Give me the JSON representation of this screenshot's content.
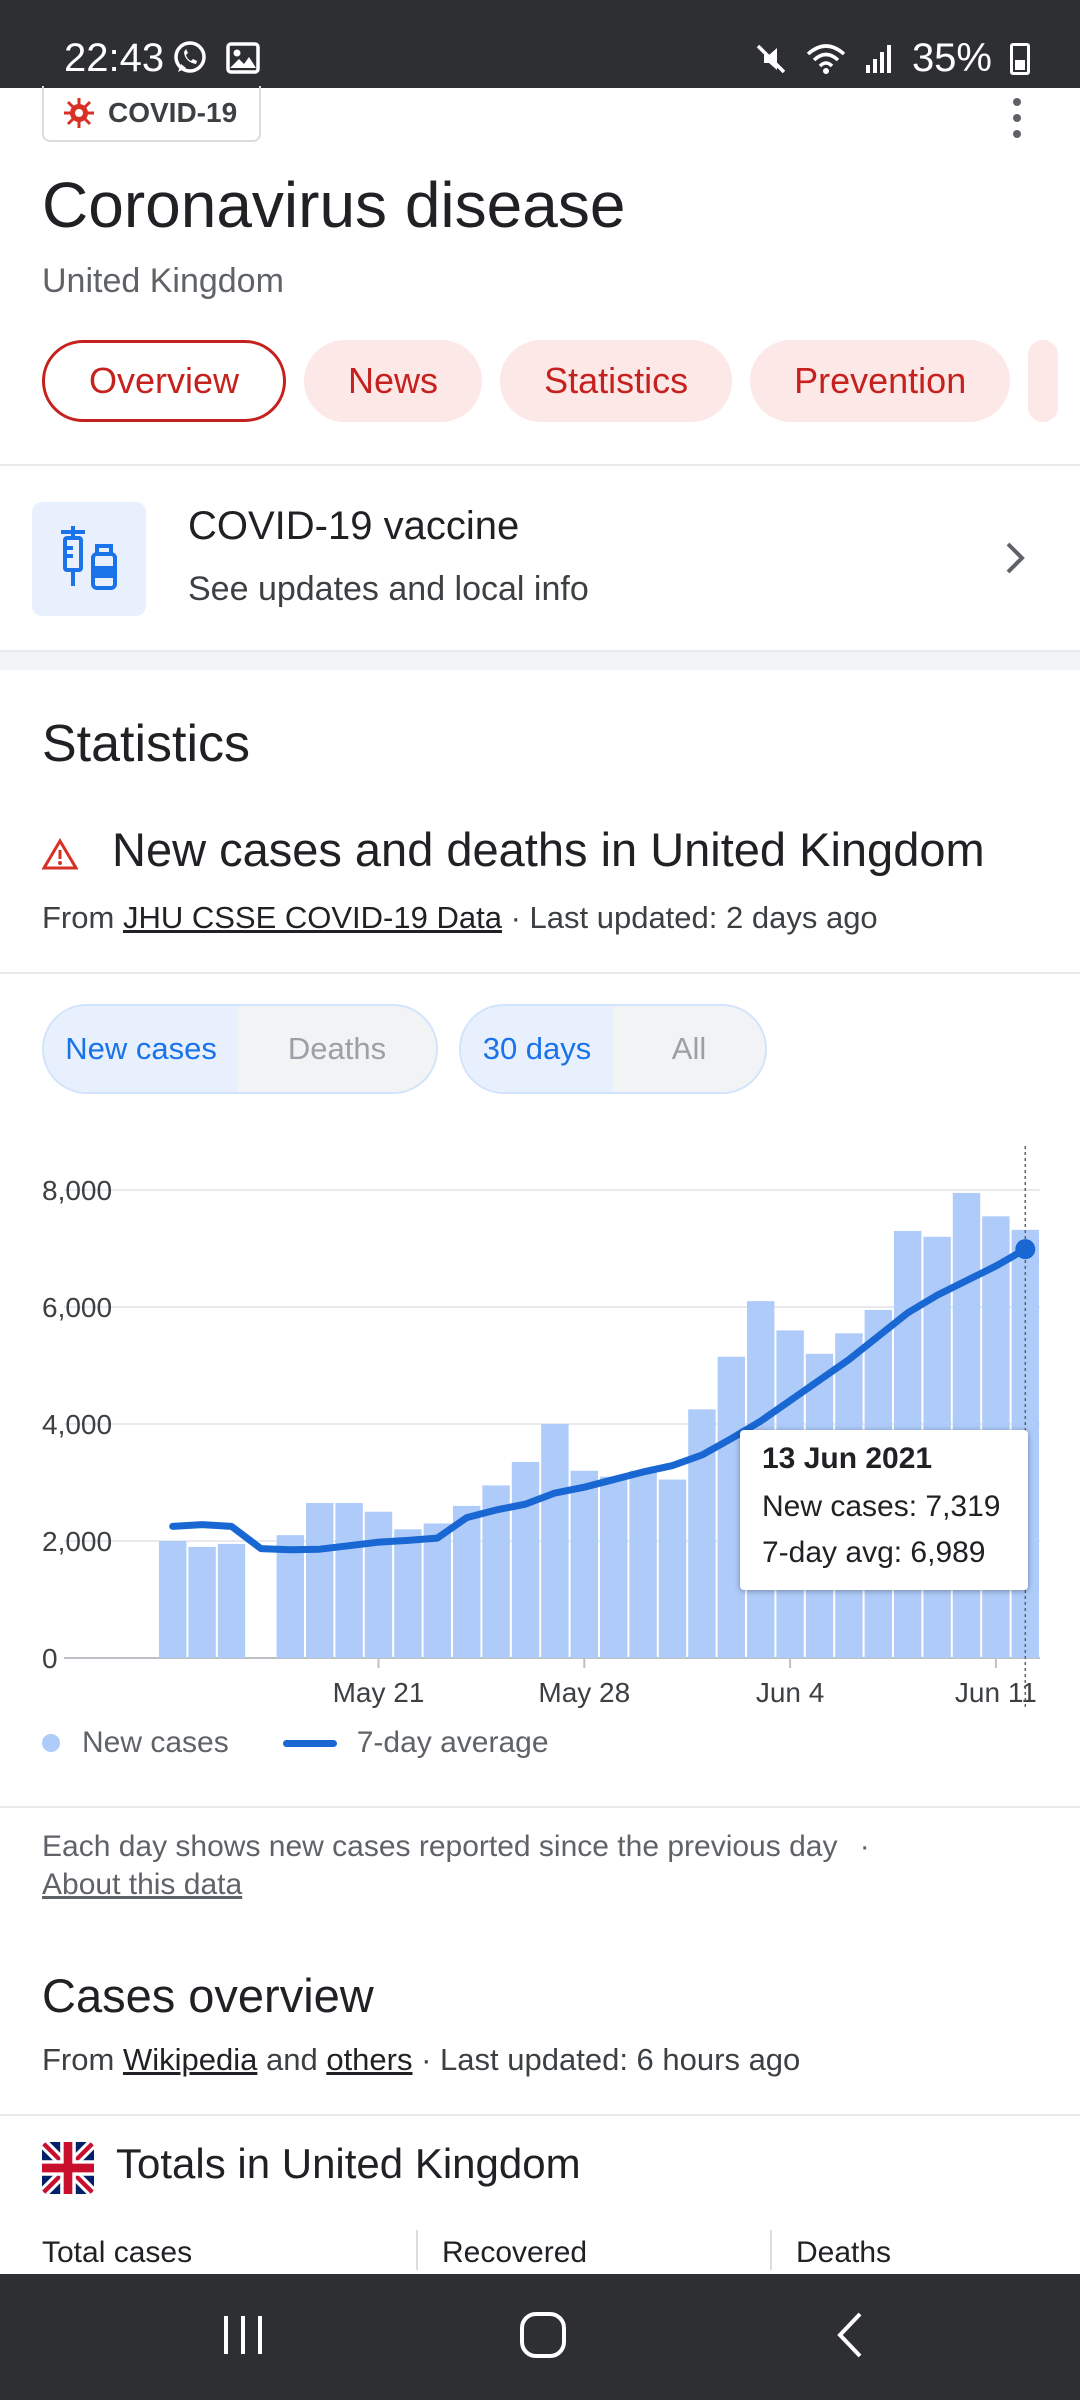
{
  "status_bar": {
    "time": "22:43",
    "battery": "35%"
  },
  "header": {
    "chip_label": "COVID-19",
    "title": "Coronavirus disease",
    "subtitle": "United Kingdom",
    "tabs": [
      {
        "label": "Overview",
        "active": true
      },
      {
        "label": "News",
        "active": false
      },
      {
        "label": "Statistics",
        "active": false
      },
      {
        "label": "Prevention",
        "active": false
      }
    ]
  },
  "vaccine_card": {
    "title": "COVID-19 vaccine",
    "subtitle": "See updates and local info"
  },
  "statistics": {
    "heading": "Statistics",
    "chart_heading": "New cases and deaths in United Kingdom",
    "source_prefix": "From",
    "source_link": "JHU CSSE COVID-19 Data",
    "source_suffix": "· Last updated: 2 days ago",
    "metric_toggle": {
      "selected": "New cases",
      "other": "Deaths"
    },
    "range_toggle": {
      "selected": "30 days",
      "other": "All"
    },
    "tooltip": {
      "date": "13 Jun 2021",
      "cases": "New cases: 7,319",
      "avg": "7-day avg: 6,989"
    },
    "legend": {
      "bars": "New cases",
      "line": "7-day average"
    },
    "note": "Each day shows new cases reported since the previous day",
    "note_dot": "·",
    "note_link": "About this data"
  },
  "chart_data": {
    "type": "bar",
    "title": "",
    "xlabel": "",
    "ylabel": "",
    "ylim": [
      0,
      8000
    ],
    "yticks": [
      "0",
      "2,000",
      "4,000",
      "6,000",
      "8,000"
    ],
    "xticks": [
      {
        "label": "May 21",
        "index": 7
      },
      {
        "label": "May 28",
        "index": 14
      },
      {
        "label": "Jun 4",
        "index": 21
      },
      {
        "label": "Jun 11",
        "index": 28
      }
    ],
    "legend_position": "bottom-left",
    "grid": true,
    "series": [
      {
        "name": "New cases",
        "type": "bar",
        "color": "#aecbfa",
        "values": [
          2000,
          1900,
          1950,
          null,
          2100,
          2650,
          2650,
          2500,
          2200,
          2300,
          2600,
          2950,
          3350,
          4000,
          3200,
          3100,
          3200,
          3050,
          4250,
          5150,
          6100,
          5600,
          5200,
          5550,
          5950,
          7300,
          7200,
          7950,
          7550,
          7319
        ]
      },
      {
        "name": "7-day average",
        "type": "line",
        "color": "#1967d2",
        "values": [
          2250,
          2280,
          2250,
          1870,
          1850,
          1860,
          1920,
          1980,
          2010,
          2050,
          2400,
          2530,
          2630,
          2820,
          2920,
          3050,
          3180,
          3290,
          3470,
          3750,
          4050,
          4400,
          4750,
          5100,
          5500,
          5900,
          6200,
          6450,
          6700,
          6989
        ]
      }
    ]
  },
  "cases_overview": {
    "heading": "Cases overview",
    "source_prefix": "From",
    "link1": "Wikipedia",
    "and": "and",
    "link2": "others",
    "source_suffix": "· Last updated: 6 hours ago",
    "totals_heading": "Totals in United Kingdom",
    "columns": [
      "Total cases",
      "Recovered",
      "Deaths"
    ]
  },
  "colors": {
    "accent_red": "#c5221f",
    "accent_blue": "#1a73e8",
    "bar": "#aecbfa",
    "line": "#1967d2"
  }
}
